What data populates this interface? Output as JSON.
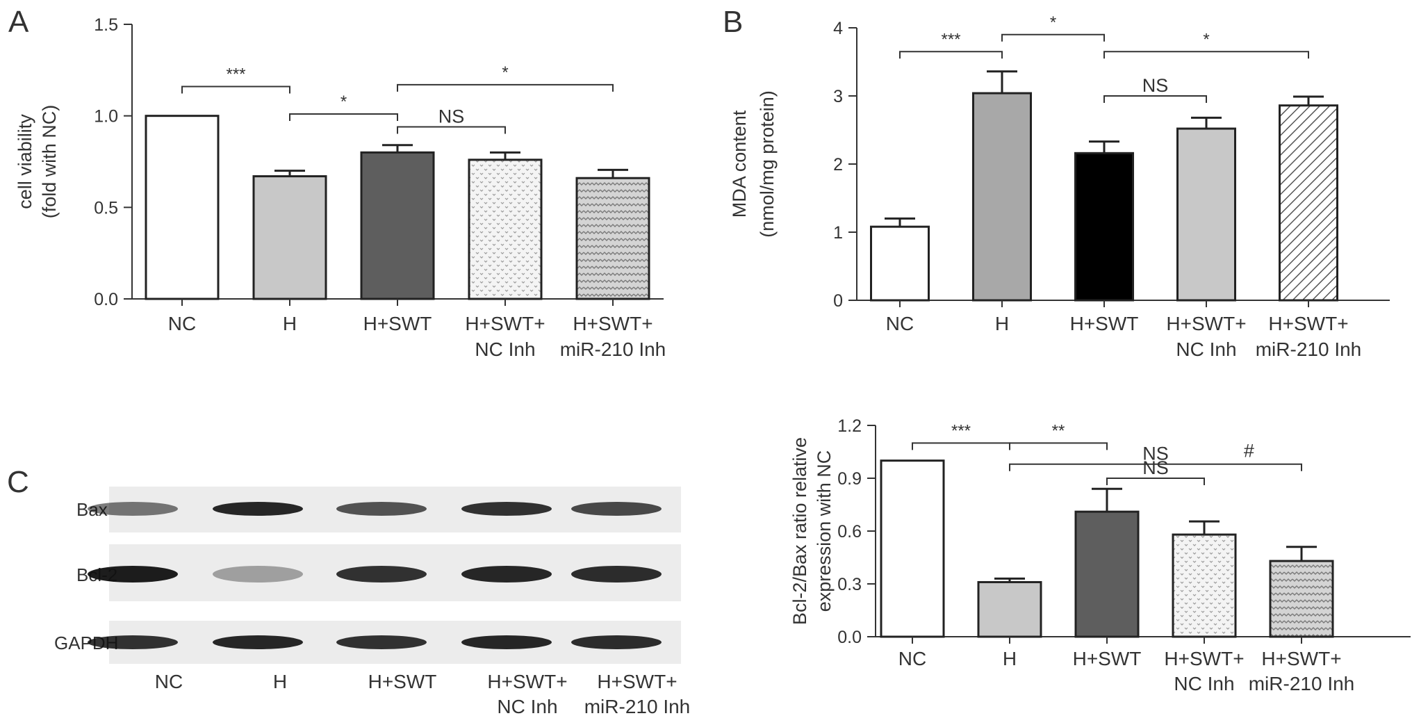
{
  "panels": {
    "a": "A",
    "b": "B",
    "c": "C"
  },
  "chart_data": [
    {
      "id": "A",
      "type": "bar",
      "ylabel": [
        "cell viability",
        "(fold with NC)"
      ],
      "ylim": [
        0,
        1.5
      ],
      "yticks": [
        "0.0",
        "0.5",
        "1.0",
        "1.5"
      ],
      "categories": [
        [
          "NC"
        ],
        [
          "H"
        ],
        [
          "H+SWT"
        ],
        [
          "H+SWT+",
          "NC Inh"
        ],
        [
          "H+SWT+",
          "miR-210 Inh"
        ]
      ],
      "values": [
        1.0,
        0.67,
        0.8,
        0.76,
        0.66
      ],
      "errors": [
        0,
        0.03,
        0.04,
        0.04,
        0.045
      ],
      "fills": [
        "white",
        "#c8c8c8",
        "#5e5e5e",
        "dots",
        "chevron"
      ],
      "brackets": [
        {
          "from": 0,
          "to": 1,
          "label": "***",
          "y": 1.16
        },
        {
          "from": 1,
          "to": 2,
          "label": "*",
          "y": 1.01
        },
        {
          "from": 2,
          "to": 3,
          "label": "NS",
          "y": 0.94
        },
        {
          "from": 2,
          "to": 4,
          "label": "*",
          "y": 1.17
        }
      ]
    },
    {
      "id": "B",
      "type": "bar",
      "ylabel": [
        "MDA content",
        "(nmol/mg protein)"
      ],
      "ylim": [
        0,
        4
      ],
      "yticks": [
        "0",
        "1",
        "2",
        "3",
        "4"
      ],
      "categories": [
        [
          "NC"
        ],
        [
          "H"
        ],
        [
          "H+SWT"
        ],
        [
          "H+SWT+",
          "NC Inh"
        ],
        [
          "H+SWT+",
          "miR-210 Inh"
        ]
      ],
      "values": [
        1.08,
        3.04,
        2.16,
        2.52,
        2.86
      ],
      "errors": [
        0.12,
        0.32,
        0.17,
        0.16,
        0.13
      ],
      "fills": [
        "white",
        "#a8a8a8",
        "#000000",
        "#c8c8c8",
        "hatch"
      ],
      "brackets": [
        {
          "from": 0,
          "to": 1,
          "label": "***",
          "y": 3.65
        },
        {
          "from": 1,
          "to": 2,
          "label": "*",
          "y": 3.9
        },
        {
          "from": 2,
          "to": 3,
          "label": "NS",
          "y": 3.0
        },
        {
          "from": 2,
          "to": 4,
          "label": "*",
          "y": 3.65
        }
      ]
    },
    {
      "id": "D",
      "type": "bar",
      "ylabel": [
        "Bcl-2/Bax ratio relative",
        "expression with NC"
      ],
      "ylim": [
        0,
        1.2
      ],
      "yticks": [
        "0.0",
        "0.3",
        "0.6",
        "0.9",
        "1.2"
      ],
      "categories": [
        [
          "NC"
        ],
        [
          "H"
        ],
        [
          "H+SWT"
        ],
        [
          "H+SWT+",
          "NC Inh"
        ],
        [
          "H+SWT+",
          "miR-210 Inh"
        ]
      ],
      "values": [
        1.0,
        0.31,
        0.71,
        0.58,
        0.43
      ],
      "errors": [
        0,
        0.02,
        0.13,
        0.075,
        0.08
      ],
      "fills": [
        "white",
        "#c8c8c8",
        "#5e5e5e",
        "dots",
        "chevron"
      ],
      "brackets": [
        {
          "from": 0,
          "to": 1,
          "label": "***",
          "y": 1.1
        },
        {
          "from": 1,
          "to": 2,
          "label": "**",
          "y": 1.1
        },
        {
          "from": 1,
          "to": 4,
          "label": "NS",
          "label2": "#",
          "y": 0.98
        },
        {
          "from": 2,
          "to": 3,
          "label": "NS",
          "y": 0.9
        }
      ]
    }
  ],
  "blot": {
    "rows": [
      "Bax",
      "Bcl-2",
      "GAPDH"
    ],
    "lanes": [
      [
        "NC"
      ],
      [
        "H"
      ],
      [
        "H+SWT"
      ],
      [
        "H+SWT+",
        "NC Inh"
      ],
      [
        "H+SWT+",
        "miR-210 Inh"
      ]
    ],
    "band_intensity": {
      "Bax": [
        0.55,
        0.9,
        0.7,
        0.85,
        0.75
      ],
      "Bcl-2": [
        0.95,
        0.35,
        0.85,
        0.9,
        0.88
      ],
      "GAPDH": [
        0.85,
        0.9,
        0.85,
        0.9,
        0.88
      ]
    }
  }
}
